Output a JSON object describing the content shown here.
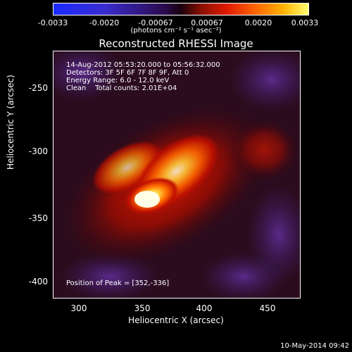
{
  "colorbar": {
    "ticks": [
      "-0.0033",
      "-0.0020",
      "-0.00067",
      "0.00067",
      "0.0020",
      "0.0033"
    ],
    "units_html": "(photons cm⁻² s⁻¹ asec⁻²)"
  },
  "title": "Reconstructed RHESSI Image",
  "info": {
    "line1": "14-Aug-2012 05:53:20.000 to 05:56:32.000",
    "line2": "Detectors: 3F 5F 6F 7F 8F 9F, Att 0",
    "line3": "Energy Range: 6.0 - 12.0 keV",
    "line4": "Clean    Total counts: 2.01E+04",
    "peak": "Position of Peak = [352,-336]"
  },
  "axes": {
    "xlabel": "Heliocentric X (arcsec)",
    "ylabel": "Heliocentric Y (arcsec)",
    "xticks": [
      "300",
      "350",
      "400",
      "450"
    ],
    "yticks": [
      "-250",
      "-300",
      "-350",
      "-400"
    ]
  },
  "timestamp": "10-May-2014 09:42"
}
